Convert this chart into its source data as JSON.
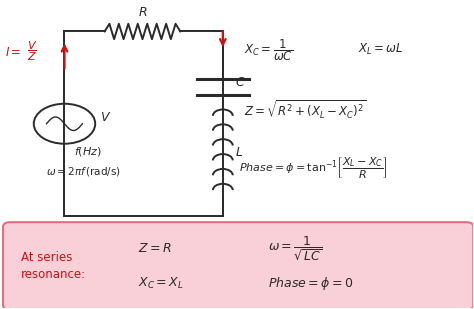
{
  "bg_color": "#ffffff",
  "circuit_color": "#2a2a2a",
  "red_color": "#cc1111",
  "pink_box_color": "#f9d0d8",
  "pink_border_color": "#e07080",
  "formula_color": "#2a2a2a",
  "resonance_label_color": "#cc1111",
  "fig_width": 4.74,
  "fig_height": 3.09,
  "dpi": 100
}
